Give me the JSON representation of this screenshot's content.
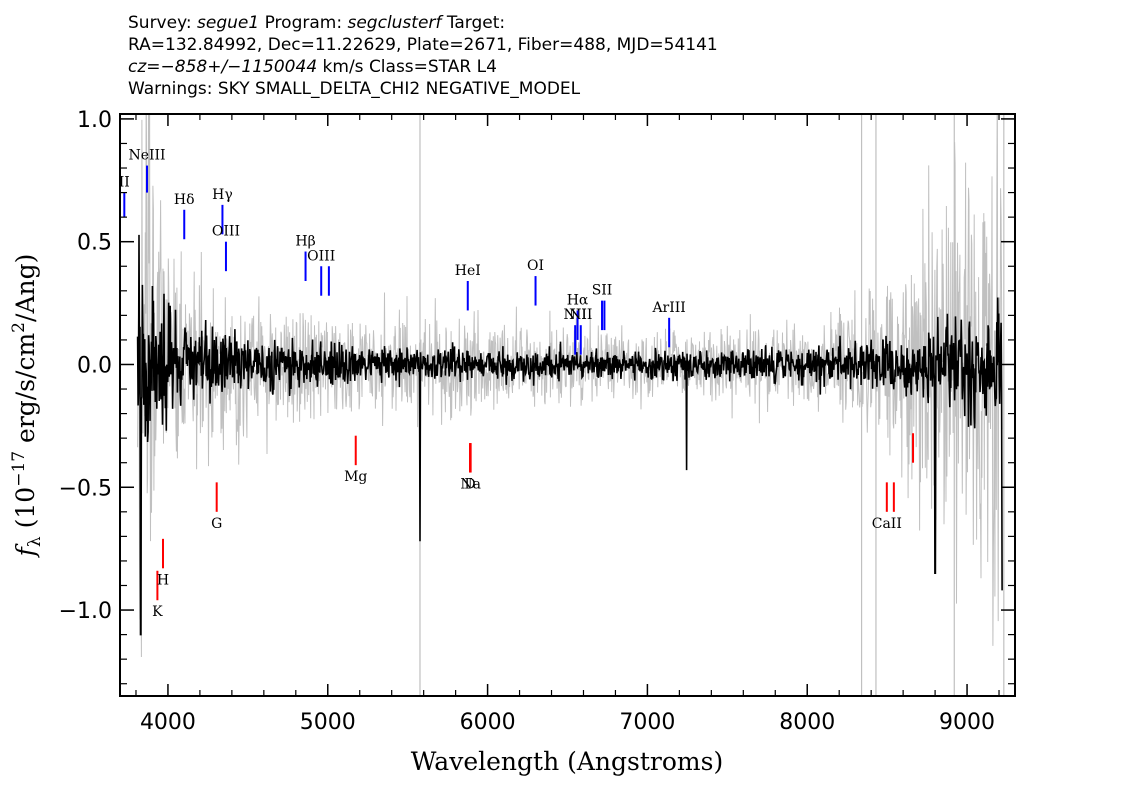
{
  "header": {
    "line1": {
      "survey_label": "Survey:",
      "survey": "segue1",
      "program_label": "Program:",
      "program": "segclusterf",
      "target_label": "Target:"
    },
    "line2": "RA=132.84992, Dec=11.22629, Plate=2671, Fiber=488, MJD=54141",
    "line3": {
      "cz_label": "cz=",
      "cz_value": "−858+/−1150044",
      "rest": " km/s Class=STAR L4"
    },
    "line4": "Warnings: SKY SMALL_DELTA_CHI2 NEGATIVE_MODEL"
  },
  "colors": {
    "flux": "#000000",
    "error": "#c0c0c0",
    "emission": "#0000ff",
    "absorption": "#ff0000",
    "sky": "#c0c0c0"
  },
  "chart_data": {
    "type": "line",
    "xlabel": "Wavelength (Angstroms)",
    "ylabel_prefix": "f",
    "ylabel_sub": "λ",
    "ylabel_rest": " (10",
    "ylabel_exp": "−17",
    "ylabel_units": " erg/s/cm",
    "ylabel_units_exp": "2",
    "ylabel_tail": "/Ang)",
    "xlim": [
      3700,
      9300
    ],
    "ylim": [
      -1.35,
      1.02
    ],
    "xticks": [
      4000,
      5000,
      6000,
      7000,
      8000,
      9000
    ],
    "xtick_labels": [
      "4000",
      "5000",
      "6000",
      "7000",
      "8000",
      "9000"
    ],
    "yticks": [
      -1.0,
      -0.5,
      0.0,
      0.5,
      1.0
    ],
    "ytick_labels": [
      "−1.0",
      "−0.5",
      "0.0",
      "0.5",
      "1.0"
    ],
    "grid": false,
    "series": [
      {
        "role": "flux",
        "wavelength_range": [
          3810,
          9220
        ],
        "noise_anchors": [
          [
            3810,
            0.3
          ],
          [
            4100,
            0.15
          ],
          [
            4500,
            0.09
          ],
          [
            5500,
            0.06
          ],
          [
            6500,
            0.045
          ],
          [
            7500,
            0.05
          ],
          [
            8300,
            0.07
          ],
          [
            8700,
            0.1
          ],
          [
            9220,
            0.2
          ]
        ],
        "dips": [
          [
            5577,
            -0.72
          ],
          [
            7245,
            -0.43
          ],
          [
            8800,
            -0.85
          ],
          [
            9220,
            -0.92
          ],
          [
            3830,
            -1.1
          ]
        ]
      },
      {
        "role": "error",
        "wavelength_range": [
          3810,
          9220
        ],
        "noise_anchors": [
          [
            3810,
            1.5
          ],
          [
            4000,
            0.55
          ],
          [
            4300,
            0.35
          ],
          [
            5000,
            0.24
          ],
          [
            6000,
            0.22
          ],
          [
            7000,
            0.16
          ],
          [
            8000,
            0.18
          ],
          [
            8350,
            0.3
          ],
          [
            8700,
            0.55
          ],
          [
            9220,
            1.3
          ]
        ]
      }
    ],
    "sky_lines": [
      5577,
      8340,
      8430,
      8920,
      9230
    ],
    "emission_lines": [
      {
        "label": "II",
        "wavelength": 3727,
        "y0": 0.6,
        "y1": 0.7
      },
      {
        "label": "NeIII",
        "wavelength": 3869,
        "y0": 0.7,
        "y1": 0.81
      },
      {
        "label": "Hδ",
        "wavelength": 4102,
        "y0": 0.51,
        "y1": 0.63
      },
      {
        "label": "Hγ",
        "wavelength": 4341,
        "y0": 0.53,
        "y1": 0.65
      },
      {
        "label": "OIII",
        "wavelength": 4363,
        "y0": 0.38,
        "y1": 0.5
      },
      {
        "label": "Hβ",
        "wavelength": 4861,
        "y0": 0.34,
        "y1": 0.46
      },
      {
        "label": "OIII",
        "wavelength": 4959,
        "y0": 0.28,
        "y1": 0.4
      },
      {
        "label": "",
        "wavelength": 5007,
        "y0": 0.28,
        "y1": 0.4
      },
      {
        "label": "HeI",
        "wavelength": 5876,
        "y0": 0.22,
        "y1": 0.34
      },
      {
        "label": "OI",
        "wavelength": 6300,
        "y0": 0.24,
        "y1": 0.36
      },
      {
        "label": "NII",
        "wavelength": 6548,
        "y0": 0.04,
        "y1": 0.16
      },
      {
        "label": "Hα",
        "wavelength": 6563,
        "y0": 0.1,
        "y1": 0.22
      },
      {
        "label": "NII",
        "wavelength": 6583,
        "y0": 0.04,
        "y1": 0.16
      },
      {
        "label": "SII",
        "wavelength": 6716,
        "y0": 0.14,
        "y1": 0.26
      },
      {
        "label": "",
        "wavelength": 6731,
        "y0": 0.14,
        "y1": 0.26
      },
      {
        "label": "ArIII",
        "wavelength": 7136,
        "y0": 0.07,
        "y1": 0.19
      }
    ],
    "absorption_lines": [
      {
        "label": "K",
        "wavelength": 3934,
        "y0": -0.96,
        "y1": -0.84
      },
      {
        "label": "H",
        "wavelength": 3969,
        "y0": -0.83,
        "y1": -0.71
      },
      {
        "label": "G",
        "wavelength": 4305,
        "y0": -0.6,
        "y1": -0.48
      },
      {
        "label": "Mg",
        "wavelength": 5175,
        "y0": -0.41,
        "y1": -0.29
      },
      {
        "label": "Na",
        "wavelength": 5894,
        "y0": -0.44,
        "y1": -0.32
      },
      {
        "label": "D",
        "wavelength": 5890,
        "y0": -0.44,
        "y1": -0.32
      },
      {
        "label": "CaII",
        "wavelength": 8498,
        "y0": -0.6,
        "y1": -0.48
      },
      {
        "label": "",
        "wavelength": 8542,
        "y0": -0.6,
        "y1": -0.48
      },
      {
        "label": "",
        "wavelength": 8662,
        "y0": -0.4,
        "y1": -0.28
      }
    ]
  }
}
